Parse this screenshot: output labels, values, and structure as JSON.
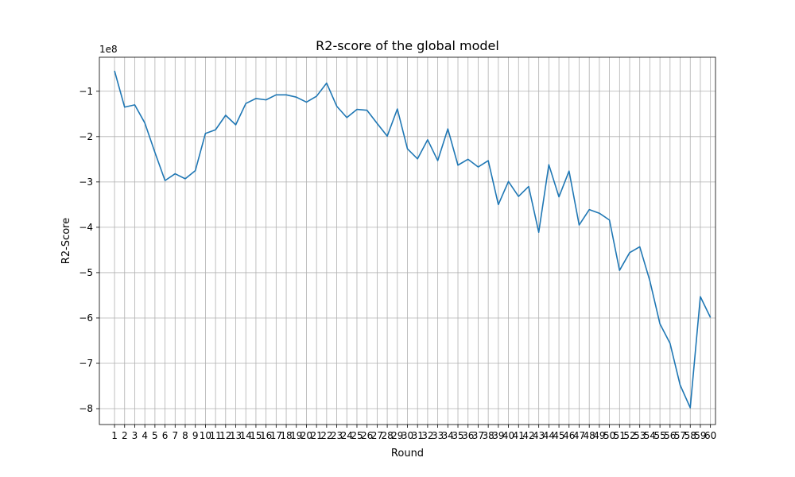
{
  "chart_data": {
    "type": "line",
    "title": "R2-score of the global model",
    "xlabel": "Round",
    "ylabel": "R2-Score",
    "y_offset_label": "1e8",
    "y_scale": 100000000,
    "xlim": [
      -0.5,
      60.5
    ],
    "ylim": [
      -835000000,
      -25000000
    ],
    "yticks": [
      -800000000,
      -700000000,
      -600000000,
      -500000000,
      -400000000,
      -300000000,
      -200000000,
      -100000000
    ],
    "ytick_labels": [
      "−8",
      "−7",
      "−6",
      "−5",
      "−4",
      "−3",
      "−2",
      "−1"
    ],
    "grid": true,
    "line_color": "#1f77b4",
    "categories": [
      "1",
      "2",
      "3",
      "4",
      "5",
      "6",
      "7",
      "8",
      "9",
      "10",
      "11",
      "12",
      "13",
      "14",
      "15",
      "16",
      "17",
      "18",
      "19",
      "20",
      "21",
      "22",
      "23",
      "24",
      "25",
      "26",
      "27",
      "28",
      "29",
      "30",
      "31",
      "32",
      "33",
      "34",
      "35",
      "36",
      "37",
      "38",
      "39",
      "40",
      "41",
      "42",
      "43",
      "44",
      "45",
      "46",
      "47",
      "48",
      "49",
      "50",
      "51",
      "52",
      "53",
      "54",
      "55",
      "56",
      "57",
      "58",
      "59",
      "60"
    ],
    "series": [
      {
        "values": [
          -55000000,
          -135000000,
          -130000000,
          -170000000,
          -235000000,
          -297000000,
          -282000000,
          -293000000,
          -275000000,
          -193000000,
          -185000000,
          -153000000,
          -174000000,
          -127000000,
          -116000000,
          -119000000,
          -108000000,
          -108000000,
          -113000000,
          -124000000,
          -111000000,
          -82000000,
          -133000000,
          -158000000,
          -140000000,
          -142000000,
          -171000000,
          -199000000,
          -139000000,
          -227000000,
          -249000000,
          -207000000,
          -253000000,
          -183000000,
          -263000000,
          -250000000,
          -267000000,
          -253000000,
          -350000000,
          -299000000,
          -332000000,
          -310000000,
          -411000000,
          -262000000,
          -333000000,
          -276000000,
          -395000000,
          -361000000,
          -369000000,
          -384000000,
          -495000000,
          -456000000,
          -443000000,
          -518000000,
          -613000000,
          -656000000,
          -748000000,
          -798000000,
          -553000000,
          -599000000
        ]
      }
    ]
  }
}
